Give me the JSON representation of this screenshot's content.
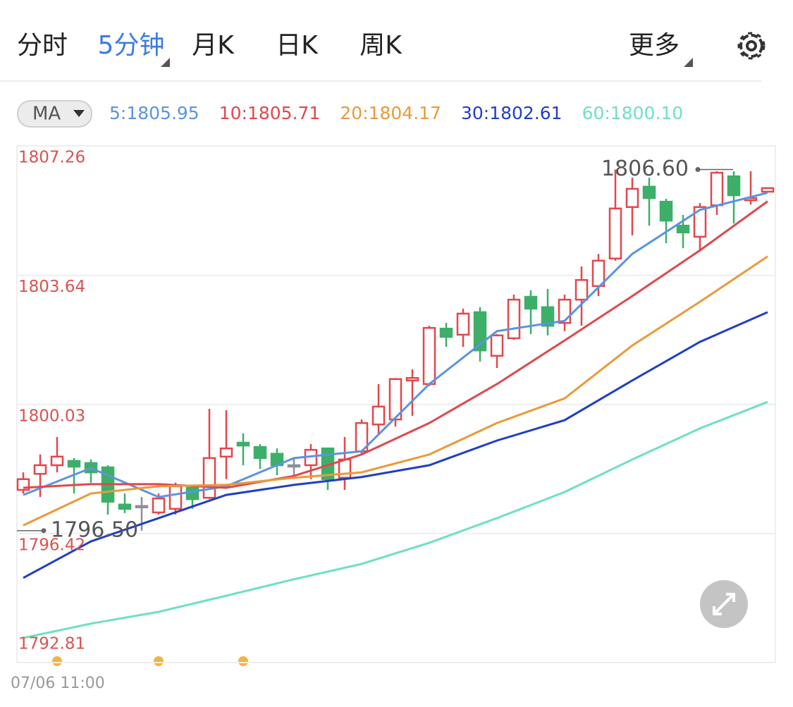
{
  "tabs": [
    "分时",
    "5分钟",
    "月K",
    "日K",
    "周K"
  ],
  "more": "更多",
  "indicator": "MA",
  "chart_data": {
    "type": "candlestick",
    "ylim": [
      1792.81,
      1807.26
    ],
    "yticks": [
      1807.26,
      1803.64,
      1800.03,
      1796.42,
      1792.81
    ],
    "x_label": "07/06 11:00",
    "up_color": "#e2474b",
    "down_color": "#3daf69",
    "flat_color": "#8a8f99",
    "open": [
      1797.64,
      1798.09,
      1798.33,
      1798.45,
      1798.39,
      1798.27,
      1797.23,
      1797.19,
      1797.01,
      1797.11,
      1797.7,
      1797.42,
      1798.57,
      1798.96,
      1798.84,
      1798.65,
      1798.33,
      1798.33,
      1798.8,
      1797.98,
      1798.72,
      1799.47,
      1799.61,
      1800.7,
      1800.6,
      1802.15,
      1801.98,
      1802.61,
      1801.39,
      1801.88,
      1803.04,
      1802.75,
      1802.31,
      1802.96,
      1803.34,
      1804.11,
      1805.55,
      1806.12,
      1805.7,
      1805.03,
      1804.72,
      1805.6,
      1806.41,
      1805.74,
      1805.98
    ],
    "high": [
      1798.13,
      1798.63,
      1799.12,
      1798.53,
      1798.49,
      1798.33,
      1797.54,
      1797.44,
      1797.54,
      1797.84,
      1797.78,
      1799.91,
      1799.87,
      1799.22,
      1798.92,
      1798.8,
      1798.53,
      1798.92,
      1798.8,
      1799.12,
      1799.61,
      1800.6,
      1800.77,
      1801.01,
      1802.23,
      1802.31,
      1802.71,
      1802.75,
      1802.0,
      1803.1,
      1803.22,
      1803.26,
      1803.1,
      1803.89,
      1804.24,
      1806.6,
      1806.37,
      1806.37,
      1805.78,
      1805.33,
      1805.66,
      1806.55,
      1806.55,
      1806.55,
      1806.08
    ],
    "low": [
      1797.54,
      1797.44,
      1798.13,
      1797.54,
      1797.84,
      1796.95,
      1796.99,
      1796.5,
      1796.95,
      1796.95,
      1797.11,
      1797.38,
      1797.94,
      1798.33,
      1798.23,
      1798.05,
      1797.94,
      1797.94,
      1797.64,
      1797.64,
      1798.63,
      1799.22,
      1799.41,
      1799.71,
      1800.54,
      1801.64,
      1801.64,
      1801.23,
      1801.05,
      1801.84,
      1802.0,
      1801.96,
      1802.08,
      1802.23,
      1803.06,
      1804.05,
      1804.76,
      1805.03,
      1804.54,
      1804.4,
      1804.32,
      1805.33,
      1805.09,
      1805.62,
      1805.98
    ],
    "close": [
      1797.94,
      1798.33,
      1798.57,
      1798.29,
      1798.13,
      1797.31,
      1797.11,
      1797.19,
      1797.4,
      1797.74,
      1797.38,
      1798.53,
      1798.8,
      1798.88,
      1798.53,
      1798.33,
      1798.33,
      1798.76,
      1797.94,
      1798.49,
      1799.51,
      1799.97,
      1800.74,
      1800.77,
      1802.17,
      1801.92,
      1802.57,
      1801.54,
      1801.96,
      1802.96,
      1802.71,
      1802.23,
      1802.96,
      1803.51,
      1804.05,
      1805.51,
      1806.06,
      1805.8,
      1805.17,
      1804.84,
      1805.55,
      1806.51,
      1805.88,
      1805.8,
      1806.08
    ],
    "series": [
      {
        "name": "5:1805.95",
        "color": "#5b94e0",
        "x": [
          0,
          4,
          8,
          12,
          16,
          20,
          24,
          28,
          32,
          36,
          40,
          44
        ],
        "values": [
          1797.5,
          1798.25,
          1797.44,
          1797.74,
          1798.53,
          1798.72,
          1800.6,
          1802.08,
          1802.37,
          1804.24,
          1805.47,
          1805.95
        ]
      },
      {
        "name": "10:1805.71",
        "color": "#e0484c",
        "x": [
          0,
          4,
          8,
          12,
          16,
          20,
          24,
          28,
          32,
          36,
          40,
          44
        ],
        "values": [
          1797.7,
          1797.8,
          1797.8,
          1797.7,
          1798.03,
          1798.63,
          1799.51,
          1800.6,
          1801.82,
          1803.06,
          1804.34,
          1805.71
        ]
      },
      {
        "name": "20:1804.17",
        "color": "#ea9a3a",
        "x": [
          0,
          4,
          8,
          12,
          16,
          20,
          24,
          28,
          32,
          36,
          40,
          44
        ],
        "values": [
          1796.65,
          1797.54,
          1797.74,
          1797.78,
          1797.98,
          1798.13,
          1798.63,
          1799.51,
          1800.2,
          1801.68,
          1802.9,
          1804.17
        ]
      },
      {
        "name": "30:1802.61",
        "color": "#1f3fc4",
        "x": [
          0,
          4,
          8,
          12,
          16,
          20,
          24,
          28,
          32,
          36,
          40,
          44
        ],
        "values": [
          1795.18,
          1796.2,
          1796.85,
          1797.5,
          1797.78,
          1798.0,
          1798.33,
          1799.02,
          1799.59,
          1800.7,
          1801.78,
          1802.61
        ]
      },
      {
        "name": "60:1800.10",
        "color": "#6ee0c4",
        "x": [
          0,
          4,
          8,
          12,
          16,
          20,
          24,
          28,
          32,
          36,
          40,
          44
        ],
        "values": [
          1793.5,
          1793.9,
          1794.23,
          1794.68,
          1795.14,
          1795.57,
          1796.16,
          1796.85,
          1797.58,
          1798.49,
          1799.36,
          1800.1
        ]
      }
    ],
    "annotations": [
      {
        "value": 1806.6,
        "label": "1806.60",
        "index": 35
      },
      {
        "value": 1796.5,
        "label": "1796.50",
        "index": 7
      }
    ]
  }
}
